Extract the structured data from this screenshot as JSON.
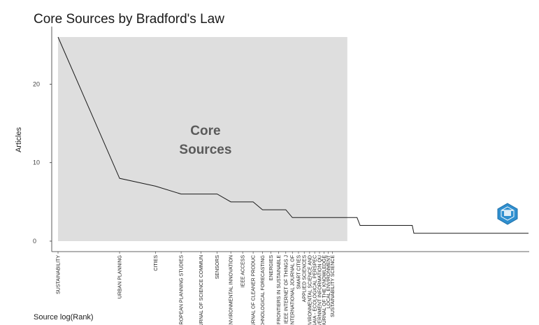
{
  "chart_data": {
    "type": "line",
    "title": "Core Sources by Bradford's Law",
    "xlabel": "Source log(Rank)",
    "ylabel": "Articles",
    "ylim": [
      0,
      26
    ],
    "yticks": [
      0,
      10,
      20
    ],
    "grid": false,
    "core_zone_label": [
      "Core",
      "Sources"
    ],
    "core_zone_last_rank": 26,
    "x": [
      1,
      2,
      3,
      4,
      5,
      6,
      7,
      8,
      9,
      10,
      11,
      12,
      13,
      14,
      15,
      16,
      17,
      18,
      19,
      20,
      21,
      22,
      23,
      24,
      25,
      26,
      27,
      28,
      29,
      30,
      31,
      32,
      33,
      34,
      35,
      36,
      37,
      38,
      39,
      40,
      41,
      42,
      43,
      44,
      45,
      46,
      47,
      48,
      49,
      50,
      51,
      52,
      53,
      54,
      55,
      56,
      57,
      58,
      59,
      60,
      61,
      62,
      63,
      64,
      65,
      66,
      67,
      68,
      69,
      70,
      71,
      72,
      73,
      74,
      75,
      76,
      77,
      78,
      79,
      80,
      81,
      82,
      83,
      84,
      85,
      86,
      87,
      88,
      89,
      90,
      91,
      92,
      93,
      94,
      95,
      96,
      97,
      98,
      99,
      100,
      101,
      102,
      103,
      104,
      105,
      106,
      107,
      108,
      109,
      110,
      111,
      112,
      113,
      114,
      115,
      116,
      117,
      118,
      119,
      120,
      121,
      122,
      123,
      124,
      125,
      126,
      127,
      128,
      129,
      130,
      131,
      132,
      133,
      134,
      135,
      136,
      137,
      138,
      139,
      140,
      141,
      142,
      143,
      144,
      145,
      146,
      147,
      148,
      149,
      150,
      151,
      152,
      153,
      154,
      155,
      156,
      157,
      158,
      159,
      160,
      161,
      162,
      163,
      164,
      165,
      166,
      167,
      168,
      169,
      170,
      171,
      172,
      173,
      174,
      175,
      176,
      177,
      178,
      179,
      180,
      181,
      182,
      183,
      184,
      185,
      186,
      187,
      188,
      189,
      190,
      191,
      192,
      193,
      194,
      195,
      196,
      197,
      198,
      199,
      200
    ],
    "y": [
      26,
      8,
      7,
      6,
      6,
      6,
      5,
      5,
      5,
      4,
      4,
      4,
      4,
      3,
      3,
      3,
      3,
      3,
      3,
      3,
      3,
      3,
      3,
      3,
      3,
      3,
      3,
      3,
      3,
      2,
      2,
      2,
      2,
      2,
      2,
      2,
      2,
      2,
      2,
      2,
      2,
      2,
      2,
      2,
      2,
      2,
      2,
      2,
      2,
      2,
      2,
      2,
      2,
      2,
      1,
      1,
      1,
      1,
      1,
      1,
      1,
      1,
      1,
      1,
      1,
      1,
      1,
      1,
      1,
      1,
      1,
      1,
      1,
      1,
      1,
      1,
      1,
      1,
      1,
      1,
      1,
      1,
      1,
      1,
      1,
      1,
      1,
      1,
      1,
      1,
      1,
      1,
      1,
      1,
      1,
      1,
      1,
      1,
      1,
      1,
      1,
      1,
      1,
      1,
      1,
      1,
      1,
      1,
      1,
      1,
      1,
      1,
      1,
      1,
      1,
      1,
      1,
      1,
      1,
      1,
      1,
      1,
      1,
      1,
      1,
      1,
      1,
      1,
      1,
      1,
      1,
      1,
      1,
      1,
      1,
      1,
      1,
      1,
      1,
      1,
      1,
      1,
      1,
      1,
      1,
      1,
      1,
      1,
      1,
      1,
      1,
      1,
      1,
      1,
      1,
      1,
      1,
      1,
      1,
      1,
      1,
      1,
      1,
      1,
      1,
      1,
      1,
      1,
      1,
      1,
      1,
      1,
      1,
      1,
      1,
      1,
      1,
      1,
      1,
      1,
      1,
      1,
      1,
      1,
      1,
      1,
      1,
      1,
      1,
      1,
      1,
      1,
      1,
      1,
      1,
      1,
      1,
      1,
      1,
      1
    ],
    "tick_labels": [
      {
        "rank": 1,
        "label": "SUSTAINABILITY"
      },
      {
        "rank": 2,
        "label": "URBAN PLANNING"
      },
      {
        "rank": 3,
        "label": "CITIES"
      },
      {
        "rank": 4,
        "label": "EUROPEAN PLANNING STUDIES"
      },
      {
        "rank": 5,
        "label": "JOURNAL OF SCIENCE COMMUN"
      },
      {
        "rank": 6,
        "label": "SENSORS"
      },
      {
        "rank": 7,
        "label": "ENVIRONMENTAL INNOVATION"
      },
      {
        "rank": 8,
        "label": "IEEE ACCESS"
      },
      {
        "rank": 9,
        "label": "JOURNAL OF CLEANER PRODUC"
      },
      {
        "rank": 10,
        "label": "TECHNOLOGICAL FORECASTING"
      },
      {
        "rank": 11,
        "label": "ENERGIES"
      },
      {
        "rank": 12,
        "label": "FRONTIERS IN SUSTAINABLE"
      },
      {
        "rank": 13,
        "label": "IEEE INTERNET OF THINGS J"
      },
      {
        "rank": 14,
        "label": "INTERNATIONAL JOURNAL OF"
      },
      {
        "rank": 15,
        "label": "SMART CITIES"
      },
      {
        "rank": 16,
        "label": "APPLIED SCIENCES"
      },
      {
        "rank": 17,
        "label": "ENVIRONMENTAL SCIENCE AND"
      },
      {
        "rank": 18,
        "label": "GAIA - ECOLOGICAL PERSPEC"
      },
      {
        "rank": 19,
        "label": "GOVERNMENT INFORMATION QU"
      },
      {
        "rank": 20,
        "label": "JOURNAL OF THE KNOWLEDGE"
      },
      {
        "rank": 21,
        "label": "LOCAL ENVIRONMENT"
      },
      {
        "rank": 22,
        "label": "SUSTAINABILITY SCIENCE"
      }
    ],
    "colors": {
      "line": "#1a1a1a",
      "core_zone": "#dedede",
      "axis": "#333333",
      "logo": "#2f8fcf"
    }
  },
  "logo": {
    "icon": "bibliometrix-logo-icon"
  }
}
